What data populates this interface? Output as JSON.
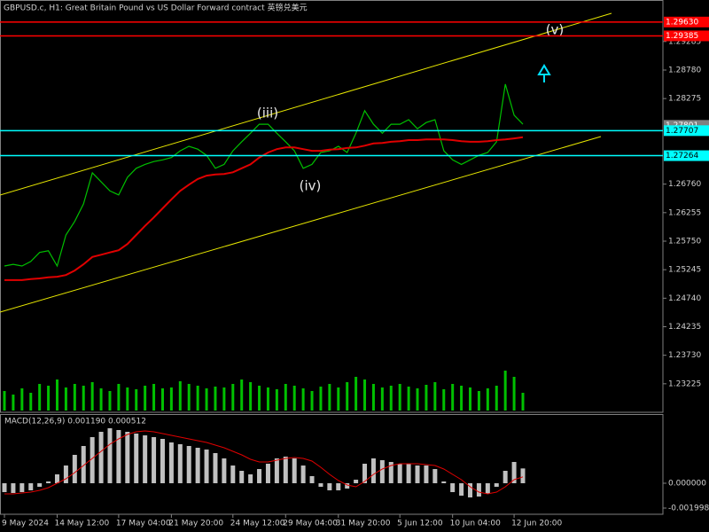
{
  "chart_data": [
    {
      "type": "line",
      "title": "GBPUSD.c, H1: Great Britain Pound vs US Dollar Forward contract 英镑兑美元",
      "categories": [
        "9 May 2024",
        null,
        null,
        null,
        null,
        null,
        "14 May 12:00",
        null,
        null,
        null,
        null,
        null,
        null,
        "17 May 04:00",
        null,
        null,
        null,
        null,
        null,
        "21 May 20:00",
        null,
        null,
        null,
        null,
        null,
        null,
        "24 May 12:00",
        null,
        null,
        null,
        null,
        null,
        "29 May 04:00",
        null,
        null,
        null,
        null,
        null,
        "31 May 20:00",
        null,
        null,
        null,
        null,
        null,
        null,
        "5 Jun 12:00",
        null,
        null,
        null,
        null,
        null,
        "10 Jun 04:00",
        null,
        null,
        null,
        null,
        null,
        null,
        "12 Jun 20:00",
        null
      ],
      "series": [
        {
          "type": "line",
          "color": "#00c000",
          "width": 1.2,
          "values": [
            1.2531,
            1.2534,
            1.2531,
            1.2539,
            1.2555,
            1.2558,
            1.2531,
            1.2586,
            1.261,
            1.2641,
            1.2696,
            1.268,
            1.2664,
            1.2657,
            1.2688,
            1.2704,
            1.2711,
            1.2716,
            1.2719,
            1.2723,
            1.2735,
            1.2743,
            1.2738,
            1.2727,
            1.2704,
            1.2711,
            1.2735,
            1.2751,
            1.2766,
            1.2782,
            1.2782,
            1.2766,
            1.2751,
            1.2735,
            1.2704,
            1.2711,
            1.2732,
            1.2735,
            1.2743,
            1.2732,
            1.2766,
            1.2806,
            1.2782,
            1.2766,
            1.2782,
            1.2782,
            1.279,
            1.2774,
            1.2785,
            1.279,
            1.2735,
            1.2719,
            1.2711,
            1.2719,
            1.2727,
            1.2732,
            1.2751,
            1.2853,
            1.2798,
            1.2782
          ]
        },
        {
          "type": "line",
          "color": "#e00000",
          "width": 2,
          "values": [
            1.2506,
            1.2506,
            1.2506,
            1.2508,
            1.2509,
            1.2511,
            1.2512,
            1.2515,
            1.2523,
            1.2534,
            1.2547,
            1.2551,
            1.2555,
            1.2559,
            1.257,
            1.2586,
            1.2602,
            1.2617,
            1.2633,
            1.2649,
            1.2664,
            1.2675,
            1.2685,
            1.2691,
            1.2693,
            1.2694,
            1.2697,
            1.2704,
            1.2711,
            1.2723,
            1.2732,
            1.2738,
            1.2741,
            1.2741,
            1.2738,
            1.2735,
            1.2735,
            1.2737,
            1.2738,
            1.274,
            1.2741,
            1.2744,
            1.2748,
            1.2749,
            1.2751,
            1.2752,
            1.2754,
            1.2754,
            1.2755,
            1.2755,
            1.2755,
            1.2754,
            1.2752,
            1.2751,
            1.2751,
            1.2752,
            1.2754,
            1.2755,
            1.2757,
            1.2759
          ]
        },
        {
          "type": "volume",
          "color": "#00c000",
          "values": [
            22,
            18,
            25,
            20,
            30,
            28,
            35,
            26,
            30,
            28,
            32,
            25,
            22,
            30,
            26,
            24,
            28,
            30,
            25,
            26,
            33,
            30,
            28,
            25,
            27,
            26,
            30,
            35,
            32,
            28,
            26,
            24,
            30,
            28,
            25,
            22,
            27,
            30,
            26,
            32,
            38,
            35,
            30,
            26,
            28,
            30,
            27,
            25,
            29,
            32,
            24,
            30,
            28,
            26,
            22,
            25,
            28,
            45,
            38,
            20
          ]
        }
      ],
      "ylim": [
        1.2272,
        1.3002
      ],
      "yticks": [
        {
          "value": 1.29285,
          "label": "1.29285"
        },
        {
          "value": 1.2878,
          "label": "1.28780"
        },
        {
          "value": 1.28275,
          "label": "1.28275"
        },
        {
          "value": 1.2676,
          "label": "1.26760"
        },
        {
          "value": 1.26255,
          "label": "1.26255"
        },
        {
          "value": 1.2575,
          "label": "1.25750"
        },
        {
          "value": 1.25245,
          "label": "1.25245"
        },
        {
          "value": 1.2474,
          "label": "1.24740"
        },
        {
          "value": 1.24235,
          "label": "1.24235"
        },
        {
          "value": 1.2373,
          "label": "1.23730"
        },
        {
          "value": 1.23225,
          "label": "1.23225"
        }
      ],
      "levels": [
        {
          "value": 1.2963,
          "label": "1.29630",
          "color": "#ff0000",
          "line": true
        },
        {
          "value": 1.29385,
          "label": "1.29385",
          "color": "#ff0000",
          "line": true
        },
        {
          "value": 1.27801,
          "label": "1.27801",
          "color": "#808080",
          "line": false
        },
        {
          "value": 1.27707,
          "label": "1.27707",
          "color": "#00ffff",
          "line": true
        },
        {
          "value": 1.27264,
          "label": "1.27264",
          "color": "#00ffff",
          "line": true
        }
      ],
      "annotations": [
        "(iii)",
        "(iv)",
        "(v)"
      ]
    },
    {
      "type": "bar",
      "title": "MACD(12,26,9) 0.001190 0.000512",
      "series": [
        {
          "type": "bar",
          "color": "#c0c0c0",
          "values": [
            -0.000714,
            -0.000785,
            -0.000714,
            -0.000571,
            -0.000285,
            0.000143,
            0.000714,
            0.001427,
            0.002284,
            0.002997,
            0.003711,
            0.004139,
            0.004424,
            0.004282,
            0.004139,
            0.003996,
            0.003853,
            0.003711,
            0.003568,
            0.003283,
            0.00314,
            0.002997,
            0.002854,
            0.002712,
            0.002426,
            0.001998,
            0.001427,
            0.000999,
            0.000714,
            0.001142,
            0.00157,
            0.001998,
            0.002141,
            0.001998,
            0.001427,
            0.000571,
            -0.000285,
            -0.000571,
            -0.000571,
            -0.000428,
            0.000285,
            0.00157,
            0.001998,
            0.001855,
            0.001713,
            0.00157,
            0.00157,
            0.001427,
            0.001427,
            0.001142,
            0.000143,
            -0.000714,
            -0.000999,
            -0.001142,
            -0.00107,
            -0.000856,
            -0.000285,
            0.000999,
            0.001713,
            0.00119
          ]
        },
        {
          "type": "line",
          "color": "#e00000",
          "width": 1,
          "values": [
            -0.000856,
            -0.000856,
            -0.000785,
            -0.000714,
            -0.000571,
            -0.000357,
            0,
            0.000357,
            0.000856,
            0.001427,
            0.001998,
            0.002569,
            0.00314,
            0.003568,
            0.003925,
            0.004139,
            0.00421,
            0.004139,
            0.003996,
            0.003853,
            0.003711,
            0.003568,
            0.003425,
            0.003283,
            0.003068,
            0.002854,
            0.002569,
            0.002284,
            0.001927,
            0.001713,
            0.001713,
            0.001855,
            0.001998,
            0.002069,
            0.001998,
            0.001784,
            0.001284,
            0.000714,
            0.000214,
            -0.000143,
            -0.000285,
            0.000143,
            0.000714,
            0.001142,
            0.001427,
            0.00157,
            0.00157,
            0.00157,
            0.001499,
            0.001427,
            0.001142,
            0.000714,
            0.000285,
            -0.000285,
            -0.000714,
            -0.000856,
            -0.000714,
            -0.000285,
            0.000285,
            0.000512
          ]
        }
      ],
      "ylim": [
        -0.002497,
        0.005566
      ],
      "yticks": [
        {
          "value": 0,
          "label": "0.000000"
        },
        {
          "value": -0.001998,
          "label": "-0.001998"
        }
      ]
    }
  ]
}
